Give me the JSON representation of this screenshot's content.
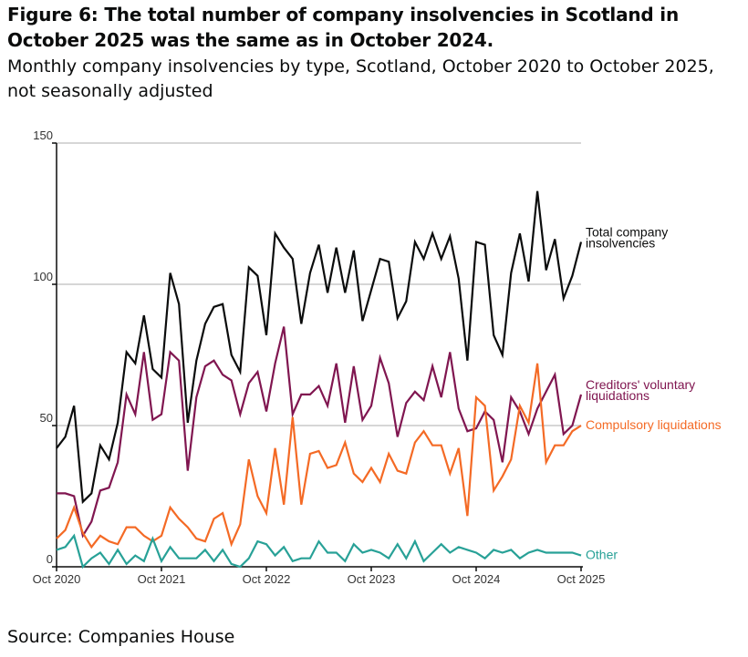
{
  "title": "Figure 6: The total number of company insolvencies in Scotland in October 2025 was the same as in October 2024.",
  "subtitle": "Monthly company insolvencies by type, Scotland, October 2020 to October 2025, not seasonally adjusted",
  "source": "Source: Companies House",
  "chart_data": {
    "type": "line",
    "title": "Monthly company insolvencies by type, Scotland",
    "xlabel": "",
    "ylabel": "",
    "x_start": "Oct 2020",
    "x_end": "Oct 2025",
    "frequency": "monthly",
    "ylim": [
      0,
      150
    ],
    "yticks": [
      0,
      50,
      100,
      150
    ],
    "xticks": [
      "Oct 2020",
      "Oct 2021",
      "Oct 2022",
      "Oct 2023",
      "Oct 2024",
      "Oct 2025"
    ],
    "grid": "horizontal",
    "legend": "direct labels at right",
    "series": [
      {
        "name": "Total company insolvencies",
        "label_lines": [
          "Total company",
          "insolvencies"
        ],
        "color": "#0b0c0c",
        "values": [
          42,
          46,
          57,
          23,
          26,
          43,
          38,
          51,
          76,
          72,
          89,
          70,
          67,
          104,
          93,
          51,
          73,
          86,
          92,
          93,
          75,
          69,
          106,
          103,
          82,
          118,
          113,
          109,
          86,
          104,
          114,
          97,
          113,
          97,
          112,
          87,
          98,
          109,
          108,
          88,
          94,
          115,
          109,
          118,
          109,
          117,
          102,
          73,
          115,
          114,
          82,
          75,
          104,
          118,
          101,
          133,
          105,
          116,
          95,
          103,
          115
        ]
      },
      {
        "name": "Creditors' voluntary liquidations",
        "label_lines": [
          "Creditors' voluntary",
          "liquidations"
        ],
        "color": "#801650",
        "values": [
          26,
          26,
          25,
          11,
          16,
          27,
          28,
          37,
          61,
          54,
          76,
          52,
          54,
          76,
          73,
          34,
          60,
          71,
          73,
          68,
          66,
          54,
          65,
          69,
          55,
          72,
          85,
          54,
          61,
          61,
          64,
          57,
          72,
          51,
          71,
          52,
          57,
          74,
          65,
          46,
          58,
          62,
          59,
          71,
          60,
          76,
          56,
          48,
          49,
          55,
          52,
          37,
          60,
          55,
          47,
          56,
          62,
          68,
          47,
          50,
          61
        ]
      },
      {
        "name": "Compulsory liquidations",
        "label_lines": [
          "Compulsory liquidations"
        ],
        "color": "#f46a25",
        "values": [
          10,
          13,
          21,
          12,
          7,
          11,
          9,
          8,
          14,
          14,
          11,
          9,
          11,
          21,
          17,
          14,
          10,
          9,
          17,
          19,
          8,
          15,
          38,
          25,
          19,
          42,
          22,
          53,
          22,
          40,
          41,
          35,
          36,
          44,
          33,
          30,
          35,
          30,
          40,
          34,
          33,
          44,
          48,
          43,
          43,
          33,
          42,
          18,
          60,
          57,
          27,
          32,
          38,
          57,
          51,
          72,
          37,
          43,
          43,
          48,
          50
        ]
      },
      {
        "name": "Other",
        "label_lines": [
          "Other"
        ],
        "color": "#28a197",
        "values": [
          6,
          7,
          11,
          0,
          3,
          5,
          1,
          6,
          1,
          4,
          2,
          10,
          2,
          7,
          3,
          3,
          3,
          6,
          2,
          6,
          1,
          0,
          3,
          9,
          8,
          4,
          7,
          2,
          3,
          3,
          9,
          5,
          5,
          2,
          8,
          5,
          6,
          5,
          3,
          8,
          3,
          9,
          2,
          5,
          8,
          5,
          7,
          6,
          5,
          3,
          6,
          5,
          6,
          3,
          5,
          6,
          5,
          5,
          5,
          5,
          4
        ]
      }
    ]
  }
}
